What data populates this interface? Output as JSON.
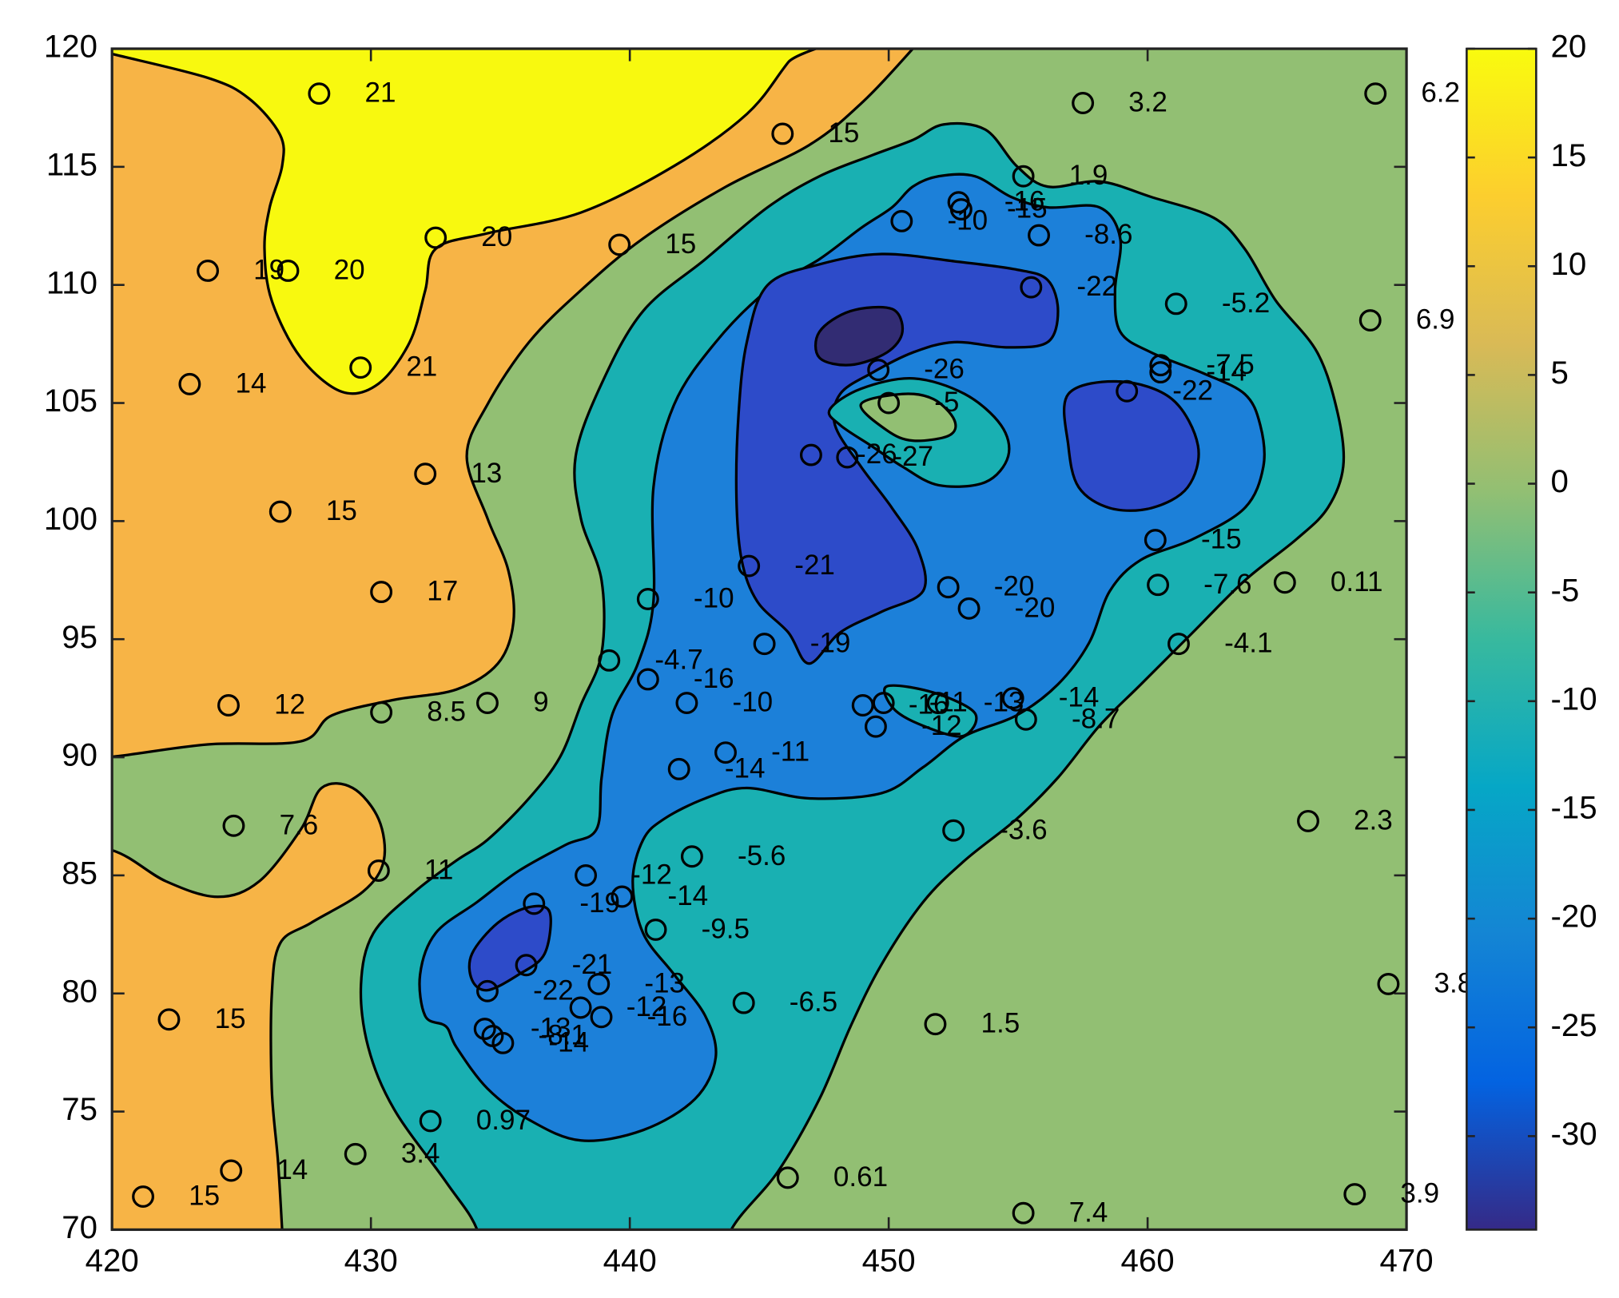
{
  "chart_data": {
    "type": "contour",
    "xlim": [
      420,
      470
    ],
    "ylim": [
      70,
      120
    ],
    "xticks": [
      420,
      430,
      440,
      450,
      460,
      470
    ],
    "yticks": [
      70,
      75,
      80,
      85,
      90,
      95,
      100,
      105,
      110,
      115,
      120
    ],
    "contour_levels": [
      -30,
      -20,
      -10,
      0,
      10,
      20
    ],
    "band_colors": [
      "#322c73",
      "#2d4bc9",
      "#1c80d9",
      "#19b0b2",
      "#92bf73",
      "#f7b446",
      "#f8f90f"
    ],
    "colorbar": {
      "lim": [
        -34.3,
        20
      ],
      "ticks": [
        -30,
        -25,
        -20,
        -15,
        -10,
        -5,
        0,
        5,
        10,
        15,
        20
      ],
      "colormap": [
        "#352a87",
        "#0363e1",
        "#1485d4",
        "#06a7c6",
        "#38b99e",
        "#92bf73",
        "#d9ba56",
        "#fcce2e",
        "#f9fb0e"
      ]
    },
    "points": {
      "x": [
        428.0,
        432.5,
        426.8,
        423.7,
        429.6,
        423.0,
        432.1,
        426.5,
        430.4,
        424.5,
        430.4,
        434.5,
        424.7,
        430.3,
        422.2,
        432.3,
        429.4,
        424.6,
        421.2,
        445.9,
        439.6,
        457.5,
        468.8,
        455.2,
        452.7,
        452.8,
        450.5,
        455.8,
        455.5,
        461.1,
        468.6,
        460.5,
        460.5,
        459.2,
        449.6,
        450.0,
        447.0,
        448.4,
        460.3,
        444.6,
        440.7,
        460.4,
        465.3,
        452.3,
        453.1,
        445.2,
        461.2,
        439.2,
        440.7,
        442.2,
        449.0,
        449.8,
        451.9,
        454.8,
        449.5,
        455.3,
        443.7,
        441.9,
        452.5,
        466.2,
        442.4,
        438.3,
        439.7,
        436.3,
        441.0,
        436.0,
        438.8,
        434.5,
        444.4,
        438.1,
        438.9,
        469.3,
        451.8,
        434.4,
        434.7,
        435.1,
        446.1,
        455.2,
        468.0
      ],
      "y": [
        118.1,
        112.0,
        110.6,
        110.6,
        106.5,
        105.8,
        102.0,
        100.4,
        97.0,
        92.2,
        91.9,
        92.3,
        87.1,
        85.2,
        78.9,
        74.6,
        73.2,
        72.5,
        71.4,
        116.4,
        111.7,
        117.7,
        118.1,
        114.6,
        113.5,
        113.2,
        112.7,
        112.1,
        109.9,
        109.2,
        108.5,
        106.6,
        106.3,
        105.5,
        106.4,
        105.0,
        102.8,
        102.7,
        99.2,
        98.1,
        96.7,
        97.3,
        97.4,
        97.2,
        96.3,
        94.8,
        94.8,
        94.1,
        93.3,
        92.3,
        92.2,
        92.3,
        92.3,
        92.5,
        91.3,
        91.6,
        90.2,
        89.5,
        86.9,
        87.3,
        85.8,
        85.0,
        84.1,
        83.8,
        82.7,
        81.2,
        80.4,
        80.1,
        79.6,
        79.4,
        79.0,
        80.4,
        78.7,
        78.5,
        78.2,
        77.9,
        72.2,
        70.7,
        71.5
      ],
      "values": [
        21,
        20,
        20,
        19,
        21,
        14,
        13,
        15,
        17,
        12,
        8.5,
        9,
        7.6,
        11,
        15,
        0.97,
        3.4,
        14,
        15,
        15,
        15,
        3.2,
        6.2,
        1.9,
        -16,
        -15,
        -10,
        -8.6,
        -22,
        -5.2,
        6.9,
        -7.5,
        -14,
        -22,
        -26,
        -5,
        -26,
        -27,
        -15,
        -21,
        -10,
        -7.6,
        0.11,
        -20,
        -20,
        -19,
        -4.1,
        -4.7,
        -16,
        -10,
        -16,
        -11,
        -13,
        -14,
        -12,
        -8.7,
        -11,
        -14,
        -3.6,
        2.3,
        -5.6,
        -12,
        -14,
        -19,
        -9.5,
        -21,
        -13,
        -22,
        -6.5,
        -12,
        -16,
        3.8,
        1.5,
        -13,
        -8.1,
        -14,
        0.61,
        7.4,
        3.9
      ]
    }
  }
}
